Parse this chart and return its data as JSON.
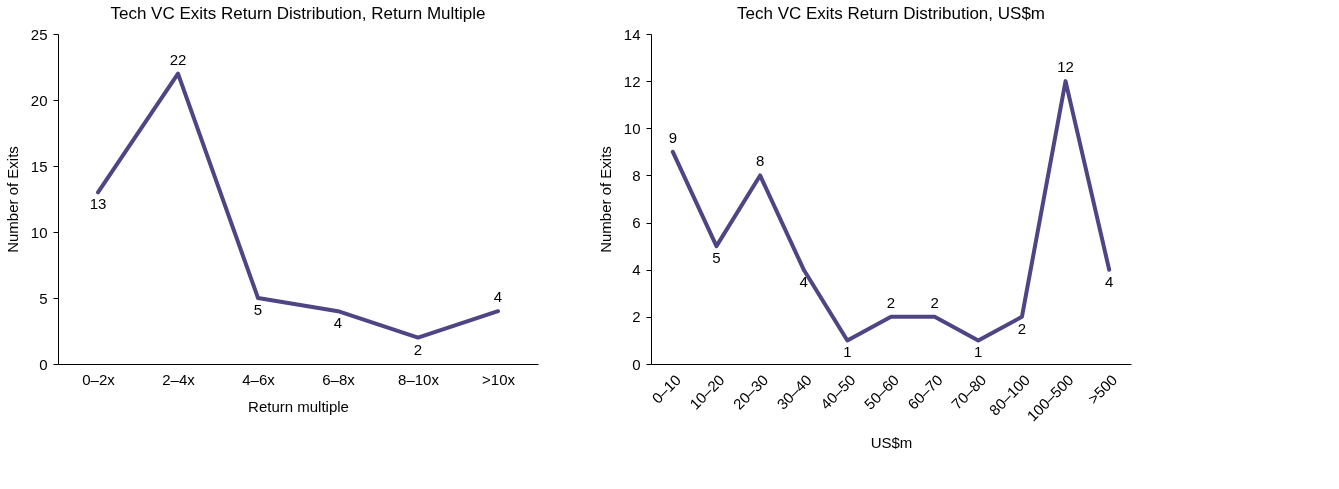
{
  "chart_data": [
    {
      "type": "line",
      "title": "Tech VC Exits Return Distribution, Return Multiple",
      "xlabel": "Return multiple",
      "ylabel": "Number of Exits",
      "categories": [
        "0–2x",
        "2–4x",
        "4–6x",
        "6–8x",
        "8–10x",
        ">10x"
      ],
      "values": [
        13,
        22,
        5,
        4,
        2,
        4
      ],
      "color": "#4f4585",
      "ylim": [
        0,
        25
      ],
      "yticks": [
        0,
        5,
        10,
        15,
        20,
        25
      ],
      "grid": false,
      "data_labels": true
    },
    {
      "type": "line",
      "title": "Tech VC Exits Return Distribution, US$m",
      "xlabel": "US$m",
      "ylabel": "Number of Exits",
      "categories": [
        "0–10",
        "10–20",
        "20–30",
        "30–40",
        "40–50",
        "50–60",
        "60–70",
        "70–80",
        "80–100",
        "100–500",
        ">500"
      ],
      "values": [
        9,
        5,
        8,
        4,
        1,
        2,
        2,
        1,
        2,
        12,
        4
      ],
      "color": "#4f4585",
      "ylim": [
        0,
        14
      ],
      "yticks": [
        0,
        2,
        4,
        6,
        8,
        10,
        12,
        14
      ],
      "grid": false,
      "data_labels": true
    }
  ]
}
